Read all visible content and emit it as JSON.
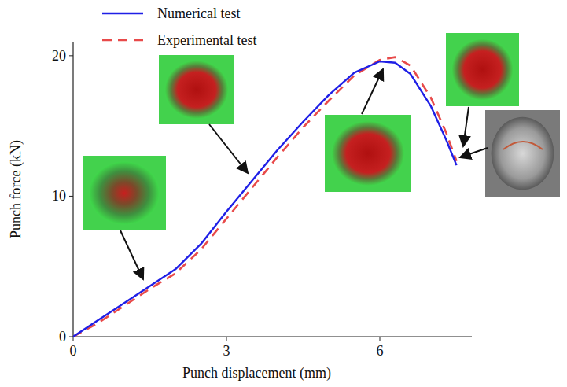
{
  "chart_data": {
    "type": "line",
    "x_label": "Punch displacement (mm)",
    "y_label": "Punch force (kN)",
    "x": [
      0,
      0.5,
      1,
      1.5,
      2,
      2.5,
      3,
      3.5,
      4,
      4.5,
      5,
      5.5,
      6,
      6.3,
      6.6,
      7,
      7.3,
      7.5
    ],
    "series": [
      {
        "name": "Numerical test",
        "color": "#1f1fe6",
        "line_style": "solid",
        "values": [
          0,
          1.2,
          2.4,
          3.6,
          4.8,
          6.6,
          8.9,
          11.1,
          13.3,
          15.3,
          17.2,
          18.8,
          19.6,
          19.5,
          18.7,
          16.4,
          14.0,
          12.2
        ]
      },
      {
        "name": "Experimental test",
        "color": "#e84a4a",
        "line_style": "dashed",
        "values": [
          0,
          1.0,
          2.2,
          3.4,
          4.5,
          6.2,
          8.4,
          10.6,
          12.8,
          14.9,
          16.8,
          18.6,
          19.7,
          19.9,
          19.3,
          17.0,
          14.5,
          12.5
        ]
      }
    ],
    "xlim": [
      0,
      7.8
    ],
    "xticks": [
      0,
      3,
      6
    ],
    "ylim": [
      0,
      21
    ],
    "yticks": [
      0,
      10,
      20
    ],
    "grid": false,
    "legend": "upper left"
  }
}
